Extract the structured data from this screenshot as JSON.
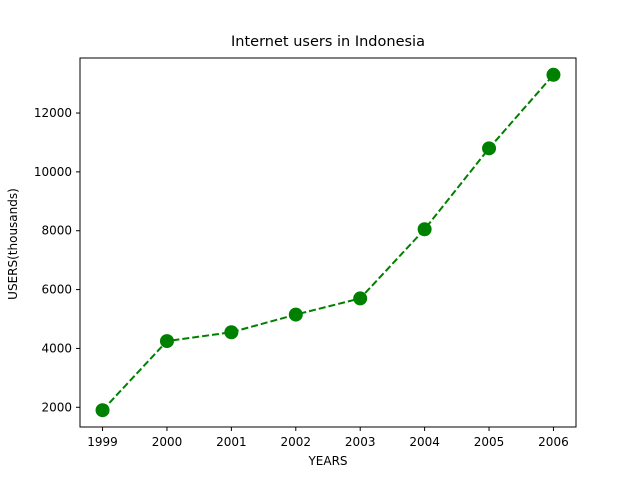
{
  "chart_data": {
    "type": "line",
    "title": "Internet users in Indonesia",
    "xlabel": "YEARS",
    "ylabel": "USERS(thousands)",
    "x": [
      "1999",
      "2000",
      "2001",
      "2002",
      "2003",
      "2004",
      "2005",
      "2006"
    ],
    "series": [
      {
        "values": [
          1900,
          4250,
          4550,
          5150,
          5700,
          8050,
          10800,
          13300
        ],
        "color": "#008000",
        "line_style": "dashed",
        "marker": "circle"
      }
    ],
    "yticks": [
      2000,
      4000,
      6000,
      8000,
      10000,
      12000
    ],
    "xlim": [
      1998.65,
      2006.35
    ],
    "ylim": [
      1330,
      13870
    ],
    "grid": false
  }
}
